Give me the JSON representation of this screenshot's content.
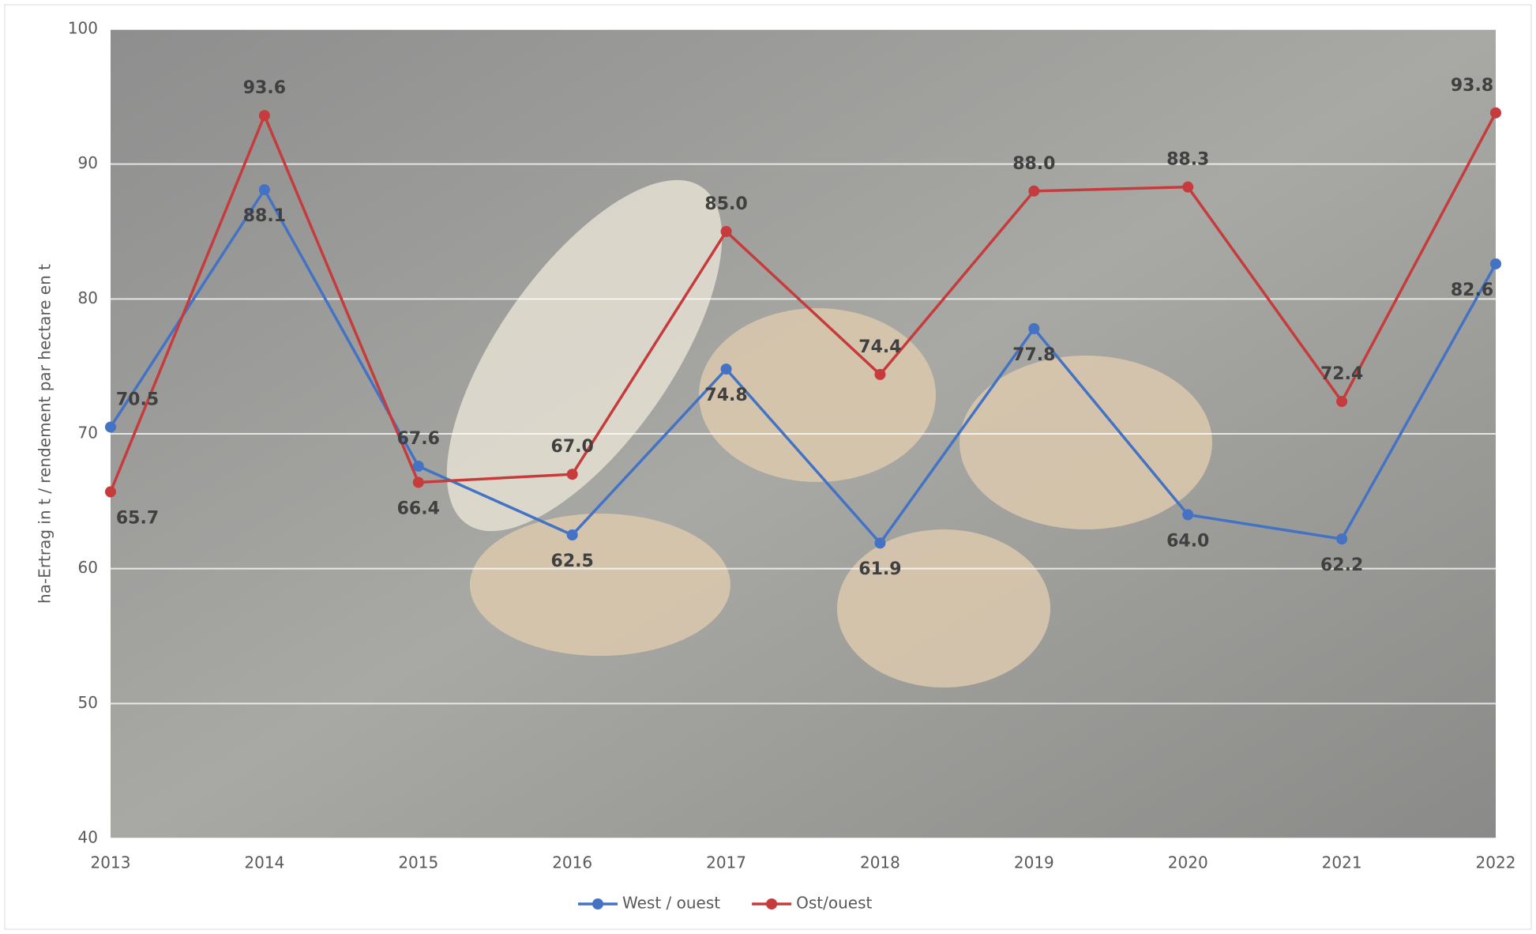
{
  "chart_data": {
    "type": "line",
    "ylabel": "ha-Ertrag in t / rendement par hectare en t",
    "categories": [
      "2013",
      "2014",
      "2015",
      "2016",
      "2017",
      "2018",
      "2019",
      "2020",
      "2021",
      "2022"
    ],
    "series": [
      {
        "name": "West / ouest",
        "color": "#4472c4",
        "values": [
          70.5,
          88.1,
          67.6,
          62.5,
          74.8,
          61.9,
          77.8,
          64.0,
          62.2,
          82.6
        ],
        "value_labels": [
          "70.5",
          "88.1",
          "67.6",
          "62.5",
          "74.8",
          "61.9",
          "77.8",
          "64.0",
          "62.2",
          "82.6"
        ]
      },
      {
        "name": "Ost/ouest",
        "color": "#c63b3b",
        "values": [
          65.7,
          93.6,
          66.4,
          67.0,
          85.0,
          74.4,
          88.0,
          88.3,
          72.4,
          93.8
        ],
        "value_labels": [
          "65.7",
          "93.6",
          "66.4",
          "67.0",
          "85.0",
          "74.4",
          "88.0",
          "88.3",
          "72.4",
          "93.8"
        ]
      }
    ],
    "ylim": [
      40,
      100
    ],
    "yticks": [
      40,
      50,
      60,
      70,
      80,
      90,
      100
    ],
    "grid": true,
    "legend": "bottom"
  }
}
